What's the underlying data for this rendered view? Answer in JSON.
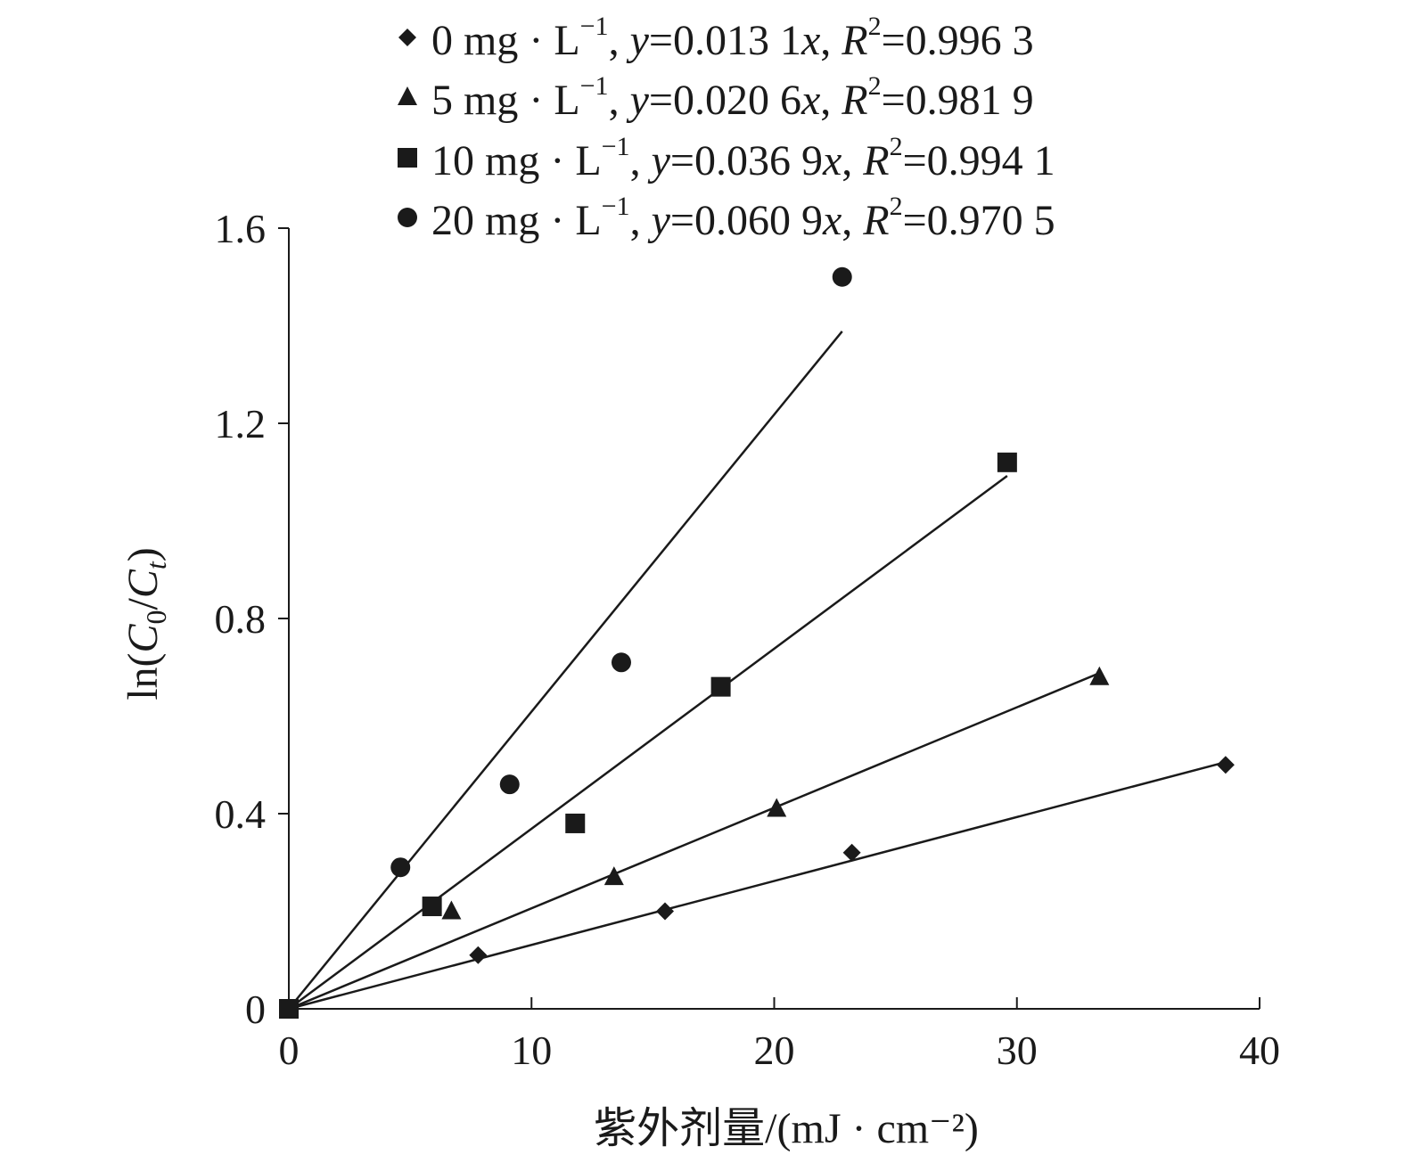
{
  "chart_data": {
    "type": "scatter",
    "xlabel": "紫外剂量/(mJ · cm⁻²)",
    "ylabel": "ln(C0/Ct)",
    "ylabel_parts": {
      "pre": "ln(",
      "c1": "C",
      "s1": "0",
      "mid": "/",
      "c2": "C",
      "s2": "t",
      "post": ")"
    },
    "xlim": [
      0,
      40
    ],
    "ylim": [
      0,
      1.6
    ],
    "xticks": [
      "0",
      "10",
      "20",
      "30",
      "40"
    ],
    "yticks": [
      "0",
      "0.4",
      "0.8",
      "1.2",
      "1.6"
    ],
    "xtick_values": [
      0,
      10,
      20,
      30,
      40
    ],
    "ytick_values": [
      0,
      0.4,
      0.8,
      1.2,
      1.6
    ],
    "grid": false,
    "legend_position": "top",
    "series": [
      {
        "name": "0 mg · L⁻¹, y=0.013 1x, R²=0.996 3",
        "legend": {
          "conc": "0 mg · L",
          "exp": "−1",
          "comma1": ", ",
          "y": "y",
          "eq": "=0.013 1",
          "x": "x",
          "comma2": ", ",
          "R": "R",
          "rexp": "2",
          "r2": "=0.996 3"
        },
        "marker": "diamond",
        "slope": 0.0131,
        "r_squared": 0.9963,
        "fit_x_end": 38.6,
        "points": [
          [
            0,
            0
          ],
          [
            7.8,
            0.11
          ],
          [
            15.5,
            0.2
          ],
          [
            23.2,
            0.32
          ],
          [
            38.6,
            0.5
          ]
        ]
      },
      {
        "name": "5 mg · L⁻¹, y=0.020 6x, R²=0.981 9",
        "legend": {
          "conc": "5 mg · L",
          "exp": "−1",
          "comma1": ", ",
          "y": "y",
          "eq": "=0.020 6",
          "x": "x",
          "comma2": ", ",
          "R": "R",
          "rexp": "2",
          "r2": "=0.981 9"
        },
        "marker": "triangle",
        "slope": 0.0206,
        "r_squared": 0.9819,
        "fit_x_end": 33.4,
        "points": [
          [
            0,
            0
          ],
          [
            6.7,
            0.2
          ],
          [
            13.4,
            0.27
          ],
          [
            20.1,
            0.41
          ],
          [
            33.4,
            0.68
          ]
        ]
      },
      {
        "name": "10 mg · L⁻¹, y=0.036 9x, R²=0.994 1",
        "legend": {
          "conc": "10 mg · L",
          "exp": "−1",
          "comma1": ", ",
          "y": "y",
          "eq": "=0.036 9",
          "x": "x",
          "comma2": ", ",
          "R": "R",
          "rexp": "2",
          "r2": "=0.994 1"
        },
        "marker": "square",
        "slope": 0.0369,
        "r_squared": 0.9941,
        "fit_x_end": 29.6,
        "points": [
          [
            0,
            0
          ],
          [
            5.9,
            0.21
          ],
          [
            11.8,
            0.38
          ],
          [
            17.8,
            0.66
          ],
          [
            29.6,
            1.12
          ]
        ]
      },
      {
        "name": "20 mg · L⁻¹, y=0.060 9x, R²=0.970 5",
        "legend": {
          "conc": "20 mg · L",
          "exp": "−1",
          "comma1": ", ",
          "y": "y",
          "eq": "=0.060 9",
          "x": "x",
          "comma2": ", ",
          "R": "R",
          "rexp": "2",
          "r2": "=0.970 5"
        },
        "marker": "circle",
        "slope": 0.0609,
        "r_squared": 0.9705,
        "fit_x_end": 22.8,
        "points": [
          [
            0,
            0
          ],
          [
            4.6,
            0.29
          ],
          [
            9.1,
            0.46
          ],
          [
            13.7,
            0.71
          ],
          [
            22.8,
            1.5
          ]
        ]
      }
    ]
  }
}
